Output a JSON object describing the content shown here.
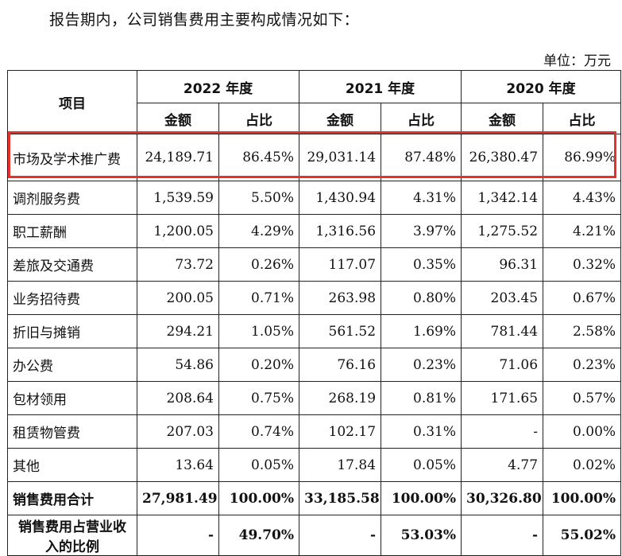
{
  "intro": "报告期内，公司销售费用主要构成情况如下：",
  "unit": "单位：万元",
  "header": {
    "item": "项目",
    "years": [
      "2022 年度",
      "2021 年度",
      "2020 年度"
    ],
    "amount": "金额",
    "ratio": "占比"
  },
  "rows": [
    {
      "name": "市场及学术推广费",
      "v": [
        "24,189.71",
        "86.45%",
        "29,031.14",
        "87.48%",
        "26,380.47",
        "86.99%"
      ]
    },
    {
      "name": "调剂服务费",
      "v": [
        "1,539.59",
        "5.50%",
        "1,430.94",
        "4.31%",
        "1,342.14",
        "4.43%"
      ]
    },
    {
      "name": "职工薪酬",
      "v": [
        "1,200.05",
        "4.29%",
        "1,316.56",
        "3.97%",
        "1,275.52",
        "4.21%"
      ]
    },
    {
      "name": "差旅及交通费",
      "v": [
        "73.72",
        "0.26%",
        "117.07",
        "0.35%",
        "96.31",
        "0.32%"
      ]
    },
    {
      "name": "业务招待费",
      "v": [
        "200.05",
        "0.71%",
        "263.98",
        "0.80%",
        "203.45",
        "0.67%"
      ]
    },
    {
      "name": "折旧与摊销",
      "v": [
        "294.21",
        "1.05%",
        "561.52",
        "1.69%",
        "781.44",
        "2.58%"
      ]
    },
    {
      "name": "办公费",
      "v": [
        "54.86",
        "0.20%",
        "76.16",
        "0.23%",
        "71.06",
        "0.23%"
      ]
    },
    {
      "name": "包材领用",
      "v": [
        "208.64",
        "0.75%",
        "268.19",
        "0.81%",
        "171.65",
        "0.57%"
      ]
    },
    {
      "name": "租赁物管费",
      "v": [
        "207.03",
        "0.74%",
        "102.17",
        "0.31%",
        "-",
        "0.00%"
      ]
    },
    {
      "name": "其他",
      "v": [
        "13.64",
        "0.05%",
        "17.84",
        "0.05%",
        "4.77",
        "0.02%"
      ]
    }
  ],
  "total": {
    "name": "销售费用合计",
    "v": [
      "27,981.49",
      "100.00%",
      "33,185.58",
      "100.00%",
      "30,326.80",
      "100.00%"
    ]
  },
  "ratio_row": {
    "name": "销售费用占营业收入的比例",
    "v": [
      "-",
      "49.70%",
      "-",
      "53.03%",
      "-",
      "55.02%"
    ]
  },
  "highlight_color": "#e8312a"
}
